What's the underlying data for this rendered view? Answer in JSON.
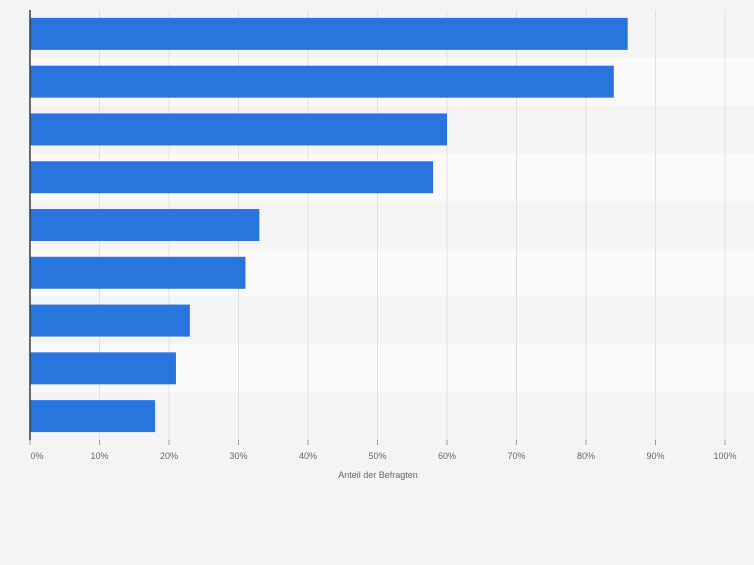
{
  "chart_data": {
    "type": "bar",
    "orientation": "horizontal",
    "categories": [
      "",
      "",
      "",
      "",
      "",
      "",
      "",
      "",
      ""
    ],
    "values": [
      86,
      84,
      60,
      58,
      33,
      31,
      23,
      21,
      18
    ],
    "xlabel": "Anteil der Befragten",
    "ylabel": "",
    "xlim": [
      0,
      100
    ],
    "xticks": [
      "0%",
      "10%",
      "20%",
      "30%",
      "40%",
      "50%",
      "60%",
      "70%",
      "80%",
      "90%",
      "100%"
    ],
    "grid": "vertical",
    "bar_color": "#2876dd",
    "stripe_colors": [
      "#f4f4f5",
      "#fafafa"
    ],
    "gridline_color": "#e0e0e4",
    "axis_color": "#3a3a3a",
    "text_color": "#666666"
  }
}
